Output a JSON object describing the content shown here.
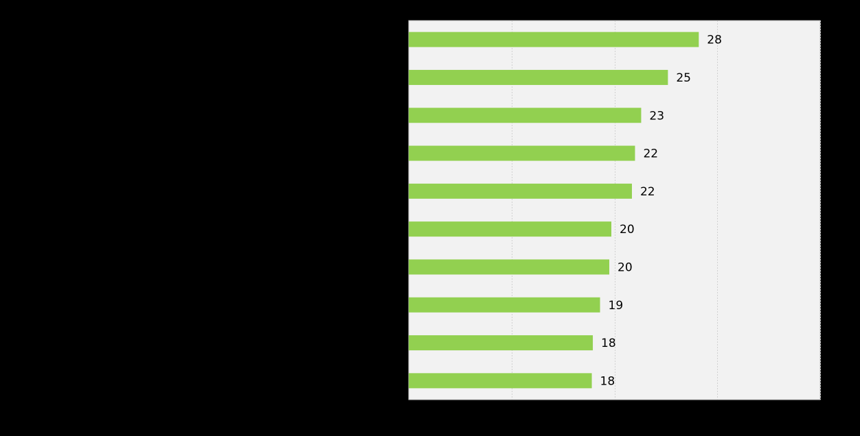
{
  "chart_data": {
    "type": "bar",
    "orientation": "horizontal",
    "categories": [
      "",
      "",
      "",
      "",
      "",
      "",
      "",
      "",
      "",
      ""
    ],
    "values": [
      28.2,
      25.2,
      22.6,
      22.0,
      21.7,
      19.7,
      19.5,
      18.6,
      17.9,
      17.8
    ],
    "data_labels": [
      "28",
      "25",
      "23",
      "22",
      "22",
      "20",
      "20",
      "19",
      "18",
      "18"
    ],
    "title": "",
    "xlabel": "",
    "ylabel": "",
    "xlim": [
      0,
      40
    ],
    "x_gridlines": [
      10,
      20,
      30,
      40
    ],
    "grid": true,
    "colors": {
      "page_background": "#000000",
      "plot_background": "#f2f2f2",
      "plot_border": "#bfbfbf",
      "gridline": "#d0d0d0",
      "bar": "#92d050",
      "label": "#000000"
    }
  }
}
